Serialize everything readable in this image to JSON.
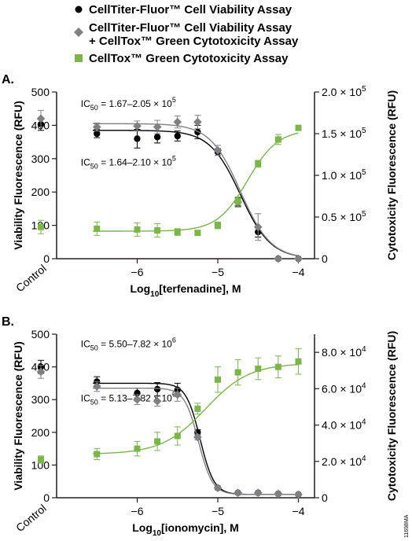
{
  "legend": [
    {
      "label": "CellTiter-Fluor™ Cell Viability Assay",
      "marker": "circle",
      "color": "#000000"
    },
    {
      "label": "CellTiter-Fluor™ Cell Viability Assay",
      "label2": "+ CellTox™ Green  Cytotoxicity Assay",
      "marker": "diamond",
      "color": "#7f8083"
    },
    {
      "label": "CellTox™ Green  Cytotoxicity Assay",
      "marker": "square",
      "color": "#7ab648"
    }
  ],
  "figure_id": "11698MA",
  "colors": {
    "black_series": "#000000",
    "gray_series": "#7f8083",
    "green_series": "#7ab648",
    "axis": "#231f20"
  },
  "chart_data": [
    {
      "type": "scatter",
      "panel_label": "A.",
      "ylabel": "Viability Fluorescence (RFU)",
      "y2label": "Cytotoxicity Fluorescence (RFU)",
      "xlabel_prefix": "Log",
      "xlabel_sub": "10",
      "xlabel_suffix": "[terfenadine], M",
      "control_label": "Control",
      "xlim": [
        -7.0,
        -3.8
      ],
      "ylim": [
        0,
        500
      ],
      "y2lim": [
        0,
        200000
      ],
      "x_ticks": [
        -6,
        -5,
        -4
      ],
      "x_tick_labels": [
        "−6",
        "−5",
        "−4"
      ],
      "y_ticks": [
        0,
        100,
        200,
        300,
        400,
        500
      ],
      "y_tick_labels": [
        "0",
        "100",
        "200",
        "300",
        "400",
        "500"
      ],
      "y2_ticks": [
        0,
        50000,
        100000,
        150000,
        200000
      ],
      "y2_tick_labels": [
        {
          "mant": "0",
          "exp": ""
        },
        {
          "mant": "0.5 × 10",
          "exp": "5"
        },
        {
          "mant": "1.0 × 10",
          "exp": "5"
        },
        {
          "mant": "1.5 × 10",
          "exp": "5"
        },
        {
          "mant": "2.0 × 10",
          "exp": "5"
        }
      ],
      "annotations": [
        {
          "pre": "IC",
          "sub": "50",
          "post": " = 1.67–2.05 × 10",
          "sup": "5",
          "x": -6.7,
          "y": 455
        },
        {
          "pre": "IC",
          "sub": "50",
          "post": " = 1.64–2.10 × 10",
          "sup": "5",
          "x": -6.7,
          "y": 280
        }
      ],
      "series": [
        {
          "name": "CellTiter-Fluor™ Cell Viability Assay",
          "marker": "circle",
          "color": "#000000",
          "axis": "left",
          "x": [
            -6.5,
            -6.0,
            -5.75,
            -5.5,
            -5.25,
            -5.0,
            -4.75,
            -4.5,
            -4.25,
            -4.0
          ],
          "y": [
            375,
            360,
            365,
            368,
            380,
            320,
            170,
            80,
            0,
            0
          ],
          "err": [
            12,
            28,
            18,
            15,
            20,
            10,
            12,
            15,
            3,
            3
          ],
          "control": {
            "y": 403,
            "err": 18
          },
          "fit": {
            "top": 385,
            "bottom": 0,
            "logec50": -4.72,
            "hill": -2.3
          }
        },
        {
          "name": "CellTiter-Fluor™ Cell Viability Assay + CellTox™ Green Cytotoxicity Assay",
          "marker": "diamond",
          "color": "#7f8083",
          "axis": "left",
          "x": [
            -6.5,
            -6.0,
            -5.75,
            -5.5,
            -5.25,
            -5.0,
            -4.75,
            -4.5,
            -4.25,
            -4.0
          ],
          "y": [
            395,
            398,
            395,
            410,
            410,
            325,
            170,
            95,
            0,
            0
          ],
          "err": [
            12,
            15,
            20,
            18,
            20,
            15,
            15,
            40,
            3,
            3
          ],
          "control": {
            "y": 420,
            "err": 25
          },
          "fit": {
            "top": 405,
            "bottom": 0,
            "logec50": -4.72,
            "hill": -2.3
          }
        },
        {
          "name": "CellTox™ Green  Cytotoxicity Assay",
          "marker": "square",
          "color": "#7ab648",
          "axis": "right",
          "x": [
            -6.5,
            -6.0,
            -5.75,
            -5.5,
            -5.25,
            -5.0,
            -4.75,
            -4.5,
            -4.25,
            -4.0
          ],
          "y": [
            36000,
            35000,
            34000,
            32000,
            31000,
            40000,
            69000,
            114000,
            143000,
            157000
          ],
          "err": [
            8000,
            8000,
            8000,
            4000,
            3000,
            4000,
            5000,
            4000,
            6000,
            2000
          ],
          "control": {
            "y": 38000,
            "err": 8000
          },
          "fit": {
            "top": 155000,
            "bottom": 33000,
            "logec50": -4.63,
            "hill": 2.3
          }
        }
      ]
    },
    {
      "type": "scatter",
      "panel_label": "B.",
      "ylabel": "Viability Fluorescence (RFU)",
      "y2label": "Cytotoxicity Fluorescence (RFU)",
      "xlabel_prefix": "Log",
      "xlabel_sub": "10",
      "xlabel_suffix": "[ionomycin], M",
      "control_label": "Control",
      "xlim": [
        -7.0,
        -3.8
      ],
      "ylim": [
        0,
        500
      ],
      "y2lim": [
        0,
        90000
      ],
      "x_ticks": [
        -6,
        -5,
        -4
      ],
      "x_tick_labels": [
        "−6",
        "−5",
        "−4"
      ],
      "y_ticks": [
        0,
        100,
        200,
        300,
        400,
        500
      ],
      "y_tick_labels": [
        "0",
        "100",
        "200",
        "300",
        "400",
        "500"
      ],
      "y2_ticks": [
        0,
        20000,
        40000,
        60000,
        80000
      ],
      "y2_tick_labels": [
        {
          "mant": "0",
          "exp": ""
        },
        {
          "mant": "2.0 × 10",
          "exp": "4"
        },
        {
          "mant": "4.0 × 10",
          "exp": "4"
        },
        {
          "mant": "6.0 × 10",
          "exp": "4"
        },
        {
          "mant": "8.0 × 10",
          "exp": "4"
        }
      ],
      "annotations": [
        {
          "pre": "IC",
          "sub": "50",
          "post": " = 5.50–7.82 × 10",
          "sup": "6",
          "x": -6.7,
          "y": 460
        },
        {
          "pre": "IC",
          "sub": "50",
          "post": " = 5.13–7.82 × 10",
          "sup": "6",
          "x": -6.7,
          "y": 295
        }
      ],
      "series": [
        {
          "name": "CellTiter-Fluor™ Cell Viability Assay",
          "marker": "circle",
          "color": "#000000",
          "axis": "left",
          "x": [
            -6.5,
            -6.0,
            -5.75,
            -5.5,
            -5.25,
            -5.0,
            -4.75,
            -4.5,
            -4.25,
            -4.0
          ],
          "y": [
            355,
            320,
            332,
            330,
            200,
            30,
            15,
            15,
            12,
            10
          ],
          "err": [
            15,
            15,
            20,
            20,
            8,
            5,
            3,
            3,
            3,
            3
          ],
          "control": {
            "y": 400,
            "err": 20
          },
          "fit": {
            "top": 350,
            "bottom": 10,
            "logec50": -5.22,
            "hill": -5
          }
        },
        {
          "name": "CellTiter-Fluor™ Cell Viability Assay + CellTox™ Green Cytotoxicity Assay",
          "marker": "diamond",
          "color": "#7f8083",
          "axis": "left",
          "x": [
            -6.5,
            -6.0,
            -5.75,
            -5.5,
            -5.25,
            -5.0,
            -4.75,
            -4.5,
            -4.25,
            -4.0
          ],
          "y": [
            340,
            300,
            295,
            315,
            185,
            30,
            15,
            15,
            12,
            10
          ],
          "err": [
            15,
            15,
            15,
            20,
            8,
            5,
            3,
            3,
            3,
            3
          ],
          "control": {
            "y": 385,
            "err": 20
          },
          "fit": {
            "top": 335,
            "bottom": 10,
            "logec50": -5.24,
            "hill": -5
          }
        },
        {
          "name": "CellTox™ Green  Cytotoxicity Assay",
          "marker": "square",
          "color": "#7ab648",
          "axis": "right",
          "x": [
            -6.5,
            -6.0,
            -5.75,
            -5.5,
            -5.25,
            -5.0,
            -4.75,
            -4.5,
            -4.25,
            -4.0
          ],
          "y": [
            24000,
            27000,
            31000,
            34000,
            49000,
            65000,
            69000,
            71000,
            72000,
            75000
          ],
          "err": [
            3000,
            4000,
            5000,
            5000,
            3000,
            7000,
            7000,
            6000,
            6000,
            7000
          ],
          "control": {
            "y": 21000,
            "err": 2000
          },
          "fit": {
            "top": 74000,
            "bottom": 24000,
            "logec50": -5.15,
            "hill": 1.6
          }
        }
      ]
    }
  ]
}
